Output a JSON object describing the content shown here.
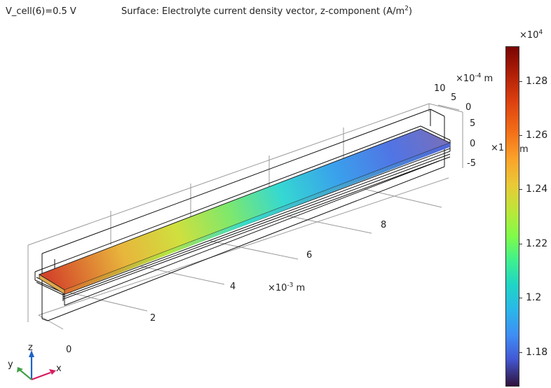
{
  "header": {
    "parameter_label": "V_cell(6)=0.5 V",
    "plot_title_main": "Surface: Electrolyte current density vector, z-component (A/m",
    "plot_title_sup": "2",
    "plot_title_end": ")"
  },
  "axes": {
    "x_scale_base": "×10",
    "x_scale_exp": "-3",
    "x_scale_unit": " m",
    "x_ticks": [
      "0",
      "2",
      "4",
      "6",
      "8"
    ],
    "y_scale_base": "×10",
    "y_scale_exp": "-4",
    "y_scale_unit": " m",
    "y_ticks": [
      "10",
      "5",
      "0"
    ],
    "z_scale_partial": "×1",
    "z_scale_unit": "m",
    "z_ticks": [
      "5",
      "0",
      "-5"
    ]
  },
  "colorbar": {
    "exponent_base": "×10",
    "exponent": "4",
    "labels": [
      "1.28",
      "1.26",
      "1.24",
      "1.22",
      "1.2",
      "1.18"
    ]
  },
  "triad": {
    "x": "x",
    "y": "y",
    "z": "z"
  },
  "colors": {
    "x_axis": "#d81b60",
    "y_axis": "#43a047",
    "z_axis": "#1e62c8"
  }
}
